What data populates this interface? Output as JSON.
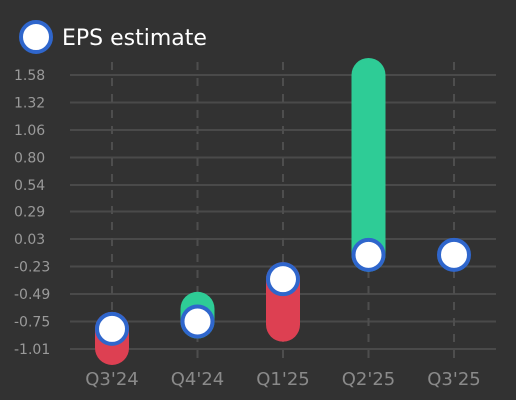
{
  "chart_data": {
    "type": "bar",
    "legend": {
      "label": "EPS estimate",
      "position": "top-left"
    },
    "categories": [
      "Q3'24",
      "Q4'24",
      "Q1'25",
      "Q2'25",
      "Q3'25"
    ],
    "y_ticks": [
      "1.58",
      "1.32",
      "1.06",
      "0.80",
      "0.54",
      "0.29",
      "0.03",
      "-0.23",
      "-0.49",
      "-0.75",
      "-1.01"
    ],
    "ylim": [
      -1.12,
      1.7
    ],
    "grid": {
      "horizontal": true,
      "vertical_dashed": true
    },
    "series": [
      {
        "name": "EPS estimate",
        "values": [
          -0.82,
          -0.75,
          -0.35,
          -0.12,
          -0.12
        ]
      }
    ],
    "actual_values": [
      -1.0,
      -0.63,
      -0.78,
      1.58,
      null
    ],
    "colors": {
      "beat": "#2ecc96",
      "miss": "#dd4052",
      "estimate_fill": "#ffffff",
      "estimate_stroke": "#2f66cc",
      "grid": "#4a4a4a",
      "background": "#323232"
    }
  }
}
